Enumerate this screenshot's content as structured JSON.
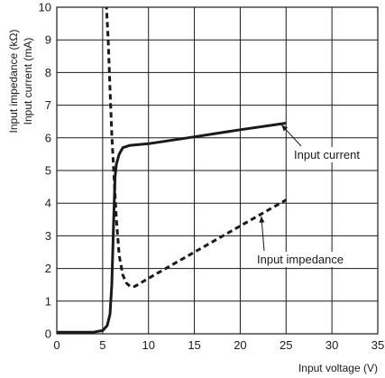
{
  "chart_data": {
    "type": "line",
    "title": "",
    "xlabel": "Input voltage (V)",
    "ylabel": "Input impedance (kΩ)\nInput current (mA)",
    "xlim": [
      0,
      35
    ],
    "ylim": [
      0,
      10
    ],
    "x_ticks": [
      "0",
      "5",
      "10",
      "15",
      "20",
      "25",
      "30",
      "35"
    ],
    "y_ticks": [
      "0",
      "1",
      "2",
      "3",
      "4",
      "5",
      "6",
      "7",
      "8",
      "9",
      "10"
    ],
    "grid": true,
    "legend": "none",
    "series": [
      {
        "name": "Input current",
        "style": "solid",
        "color": "#1a1a1a",
        "x": [
          0,
          4,
          5,
          5.5,
          5.8,
          6.0,
          6.2,
          6.35,
          6.5,
          6.8,
          7.2,
          8,
          10,
          15,
          20,
          25
        ],
        "y": [
          0.05,
          0.05,
          0.1,
          0.25,
          0.6,
          1.5,
          3.5,
          4.8,
          5.2,
          5.5,
          5.7,
          5.77,
          5.82,
          6.03,
          6.25,
          6.45
        ]
      },
      {
        "name": "Input impedance",
        "style": "dashed",
        "color": "#1a1a1a",
        "x": [
          5.4,
          5.6,
          5.8,
          6.0,
          6.2,
          6.5,
          6.8,
          7.2,
          7.6,
          8.0,
          8.5,
          10,
          15,
          20,
          25
        ],
        "y": [
          10.1,
          9.0,
          7.5,
          6.1,
          5.0,
          3.5,
          2.4,
          1.8,
          1.55,
          1.45,
          1.45,
          1.7,
          2.5,
          3.3,
          4.1
        ]
      }
    ],
    "annotations": [
      {
        "text": "Input current",
        "target_series": 0,
        "at_x": 24.5,
        "at_y": 6.4
      },
      {
        "text": "Input impedance",
        "target_series": 1,
        "at_x": 22.3,
        "at_y": 3.6
      }
    ]
  }
}
